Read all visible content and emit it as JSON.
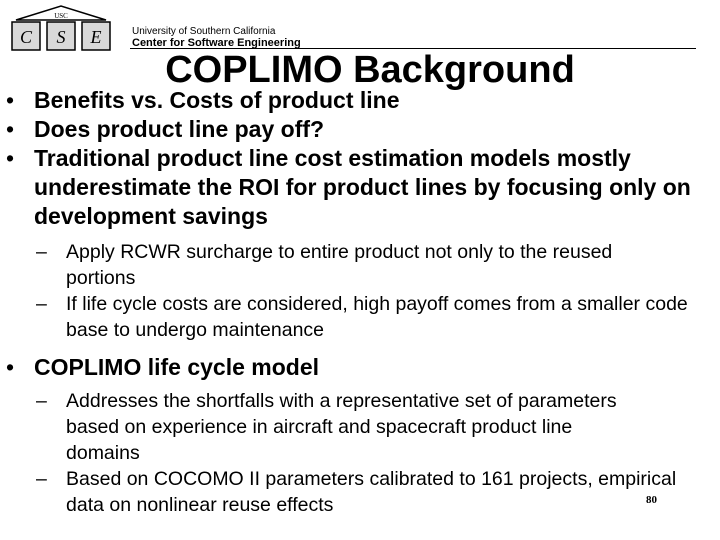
{
  "header": {
    "logo_letters": [
      "C",
      "S",
      "E"
    ],
    "logo_badge": "USC",
    "university": "University of Southern California",
    "center": "Center for Software Engineering"
  },
  "slide": {
    "title": "COPLIMO Background",
    "bullets": [
      "Benefits vs. Costs of product line",
      "Does product line pay off?",
      "Traditional product line cost estimation models mostly underestimate the ROI for product lines by focusing only on development savings"
    ],
    "sub_bullets_1": [
      "Apply RCWR surcharge to entire product not only to the reused portions",
      "If life cycle costs are considered, high payoff comes from a smaller code base to undergo maintenance"
    ],
    "bullet_4": "COPLIMO life cycle model",
    "sub_bullets_2": [
      "Addresses the shortfalls with a representative set of parameters based on experience in aircraft and spacecraft product line domains",
      "Based on COCOMO II parameters calibrated to 161 projects, empirical data on nonlinear reuse effects"
    ],
    "bullet_mark": "•",
    "dash_mark": "–"
  },
  "footer": {
    "page_number": "80"
  }
}
